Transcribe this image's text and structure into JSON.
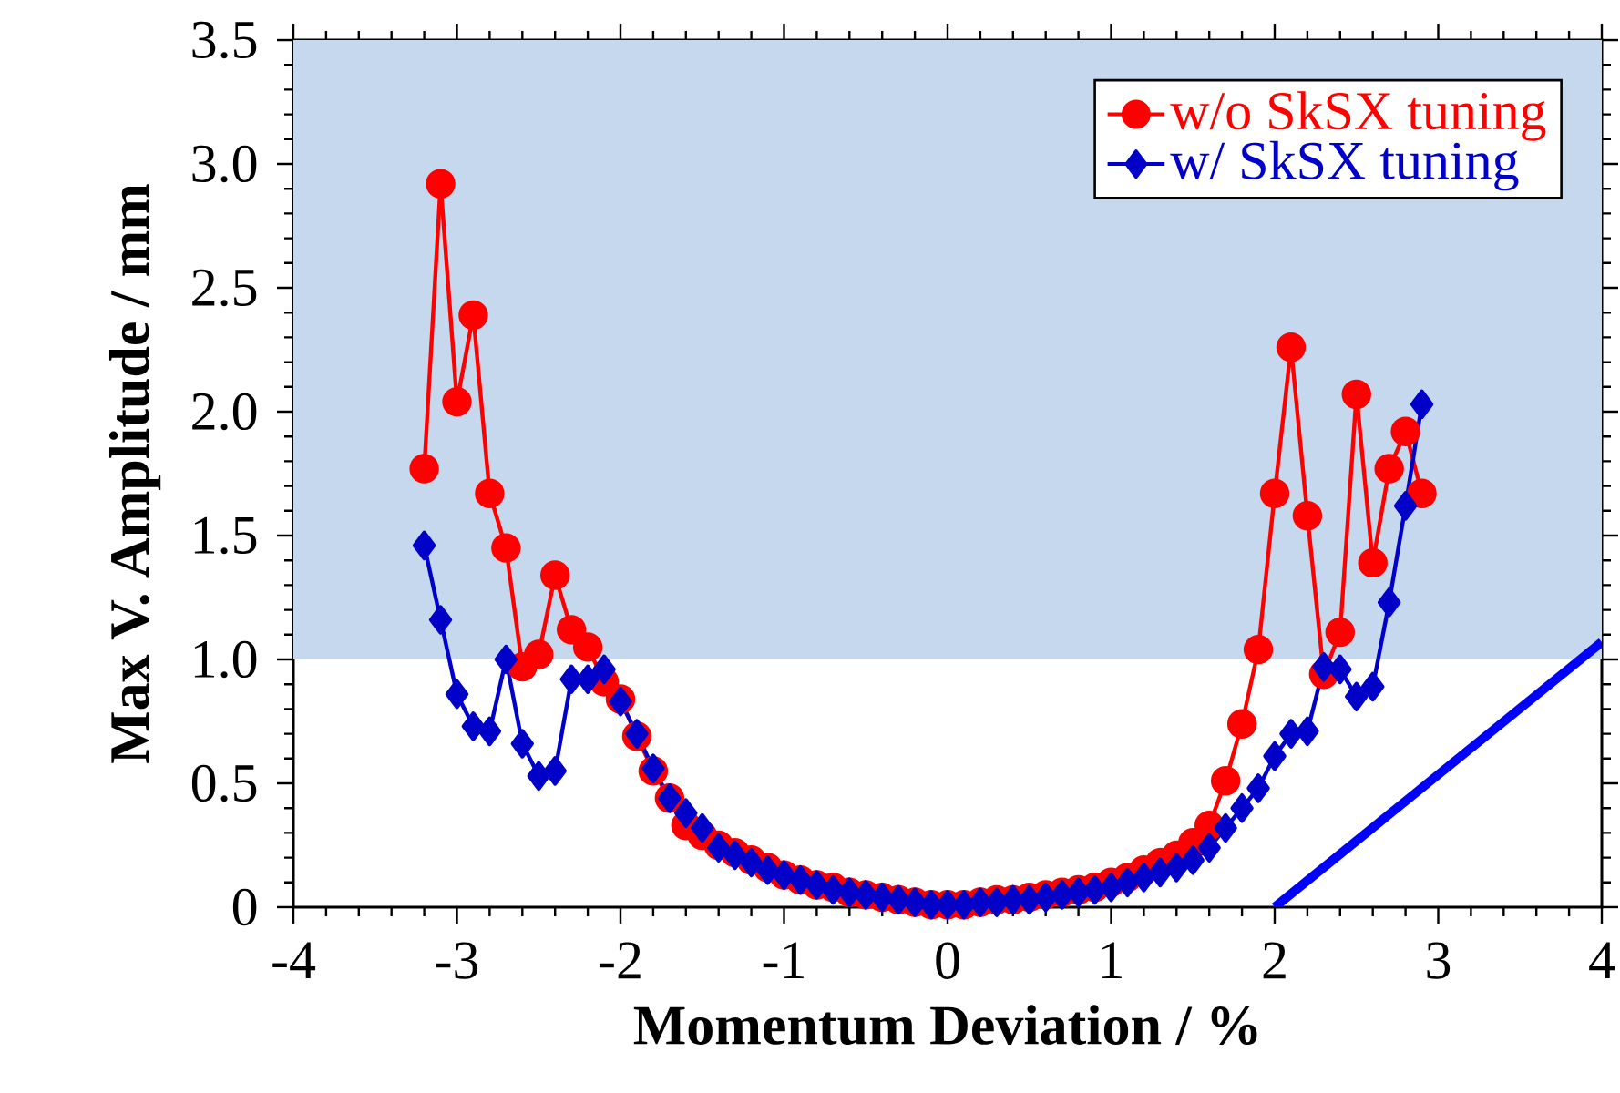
{
  "chart_data": {
    "type": "line",
    "xlabel": "Momentum Deviation / %",
    "ylabel": "Max V. Amplitude / mm",
    "xlim": [
      -4,
      4
    ],
    "ylim": [
      0,
      3.5
    ],
    "xticks": [
      -4,
      -3,
      -2,
      -1,
      0,
      1,
      2,
      3,
      4
    ],
    "yticks": [
      0,
      0.5,
      {
        "value": 1,
        "label": "1.0"
      },
      1.5,
      {
        "value": 2,
        "label": "2.0"
      },
      2.5,
      {
        "value": 3,
        "label": "3.0"
      },
      3.5
    ],
    "legend": "top right",
    "line_style": "solid",
    "bands": [
      {
        "axis": "y",
        "from": 1,
        "to": 3.5,
        "color": "#c5d8ee"
      }
    ],
    "series": [
      {
        "name": "w/o SkSX tuning",
        "color": "#ff0000",
        "marker": "circle",
        "x": [
          -3.2,
          -3.1,
          -3.0,
          -2.9,
          -2.8,
          -2.7,
          -2.6,
          -2.5,
          -2.4,
          -2.3,
          -2.2,
          -2.1,
          -2.0,
          -1.9,
          -1.8,
          -1.7,
          -1.6,
          -1.5,
          -1.4,
          -1.3,
          -1.2,
          -1.1,
          -1.0,
          -0.9,
          -0.8,
          -0.7,
          -0.6,
          -0.5,
          -0.4,
          -0.3,
          -0.2,
          -0.1,
          0.0,
          0.1,
          0.2,
          0.3,
          0.4,
          0.5,
          0.6,
          0.7,
          0.8,
          0.9,
          1.0,
          1.1,
          1.2,
          1.3,
          1.4,
          1.5,
          1.6,
          1.7,
          1.8,
          1.9,
          2.0,
          2.1,
          2.2,
          2.3,
          2.4,
          2.5,
          2.6,
          2.7,
          2.8,
          2.9
        ],
        "values": [
          1.77,
          2.92,
          2.04,
          2.39,
          1.67,
          1.45,
          0.97,
          1.02,
          1.34,
          1.12,
          1.05,
          0.91,
          0.84,
          0.69,
          0.55,
          0.44,
          0.33,
          0.29,
          0.25,
          0.22,
          0.19,
          0.16,
          0.13,
          0.11,
          0.09,
          0.08,
          0.06,
          0.05,
          0.04,
          0.03,
          0.02,
          0.01,
          0.01,
          0.01,
          0.02,
          0.03,
          0.03,
          0.04,
          0.05,
          0.06,
          0.07,
          0.08,
          0.1,
          0.12,
          0.15,
          0.18,
          0.21,
          0.26,
          0.33,
          0.51,
          0.74,
          1.04,
          1.67,
          2.26,
          1.58,
          0.94,
          1.11,
          2.07,
          1.39,
          1.77,
          1.92,
          1.67
        ]
      },
      {
        "name": "w/ SkSX tuning",
        "color": "#0000c8",
        "marker": "diamond",
        "x": [
          -3.2,
          -3.1,
          -3.0,
          -2.9,
          -2.8,
          -2.7,
          -2.6,
          -2.5,
          -2.4,
          -2.3,
          -2.2,
          -2.1,
          -2.0,
          -1.9,
          -1.8,
          -1.7,
          -1.6,
          -1.5,
          -1.4,
          -1.3,
          -1.2,
          -1.1,
          -1.0,
          -0.9,
          -0.8,
          -0.7,
          -0.6,
          -0.5,
          -0.4,
          -0.3,
          -0.2,
          -0.1,
          0.0,
          0.1,
          0.2,
          0.3,
          0.4,
          0.5,
          0.6,
          0.7,
          0.8,
          0.9,
          1.0,
          1.1,
          1.2,
          1.3,
          1.4,
          1.5,
          1.6,
          1.7,
          1.8,
          1.9,
          2.0,
          2.1,
          2.2,
          2.3,
          2.4,
          2.5,
          2.6,
          2.7,
          2.8,
          2.9
        ],
        "values": [
          1.46,
          1.16,
          0.86,
          0.73,
          0.71,
          1.0,
          0.66,
          0.53,
          0.55,
          0.92,
          0.92,
          0.96,
          0.83,
          0.7,
          0.56,
          0.44,
          0.38,
          0.32,
          0.24,
          0.21,
          0.18,
          0.15,
          0.13,
          0.11,
          0.09,
          0.07,
          0.06,
          0.05,
          0.04,
          0.03,
          0.02,
          0.01,
          0.01,
          0.01,
          0.02,
          0.02,
          0.03,
          0.03,
          0.04,
          0.05,
          0.06,
          0.07,
          0.08,
          0.1,
          0.12,
          0.14,
          0.16,
          0.19,
          0.24,
          0.32,
          0.4,
          0.48,
          0.61,
          0.7,
          0.71,
          0.97,
          0.96,
          0.85,
          0.89,
          1.23,
          1.62,
          2.03
        ]
      },
      {
        "color": "#0000ff",
        "marker": "none",
        "x": [
          2,
          4
        ],
        "values": [
          0,
          1.07
        ]
      }
    ]
  }
}
